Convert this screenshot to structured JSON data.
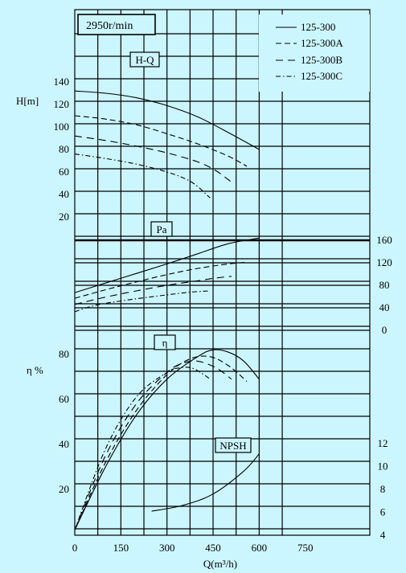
{
  "chart_data": {
    "type": "line",
    "speed_label": "2950r/min",
    "xlabel": "Q(m³/h)",
    "x_ticks": [
      0,
      150,
      300,
      450,
      600,
      750
    ],
    "x_range": [
      0,
      960
    ],
    "legend": [
      {
        "name": "125-300",
        "dash": "solid"
      },
      {
        "name": "125-300A",
        "dash": "dash"
      },
      {
        "name": "125-300B",
        "dash": "dash-wide"
      },
      {
        "name": "125-300C",
        "dash": "dashdot"
      }
    ],
    "panels": {
      "hq": {
        "label": "H-Q",
        "ylabel": "H[m]",
        "y_ticks": [
          20,
          40,
          60,
          80,
          100,
          120,
          140
        ],
        "series": [
          {
            "name": "125-300",
            "x": [
              0,
              100,
              200,
              300,
              400,
              500,
              600
            ],
            "y": [
              132,
              130,
              126,
              119,
              109,
              95,
              80
            ]
          },
          {
            "name": "125-300A",
            "x": [
              0,
              100,
              200,
              300,
              400,
              500,
              560
            ],
            "y": [
              110,
              107,
              102,
              94,
              85,
              74,
              65
            ]
          },
          {
            "name": "125-300B",
            "x": [
              0,
              100,
              200,
              300,
              400,
              460,
              510
            ],
            "y": [
              92,
              88,
              83,
              77,
              69,
              61,
              51
            ]
          },
          {
            "name": "125-300C",
            "x": [
              0,
              100,
              200,
              300,
              380,
              440
            ],
            "y": [
              76,
              72,
              67,
              60,
              51,
              37
            ]
          }
        ]
      },
      "pa": {
        "label": "Pa",
        "y_ticks_right": [
          0,
          40,
          80,
          120,
          160
        ],
        "series": [
          {
            "name": "125-300",
            "x": [
              0,
              100,
              200,
              300,
              400,
              500,
              600
            ],
            "y": [
              67,
              84,
              101,
              118,
              136,
              154,
              164
            ]
          },
          {
            "name": "125-300A",
            "x": [
              0,
              100,
              200,
              300,
              400,
              500,
              560
            ],
            "y": [
              57,
              72,
              86,
              99,
              110,
              118,
              121
            ]
          },
          {
            "name": "125-300B",
            "x": [
              0,
              100,
              200,
              300,
              400,
              460,
              510
            ],
            "y": [
              46,
              59,
              70,
              80,
              88,
              93,
              96
            ]
          },
          {
            "name": "125-300C",
            "x": [
              0,
              50,
              100,
              200,
              300,
              380,
              440
            ],
            "y": [
              33,
              42,
              48,
              56,
              63,
              68,
              70
            ]
          }
        ]
      },
      "eta": {
        "label": "η",
        "ylabel": "η %",
        "y_ticks": [
          20,
          40,
          60,
          80
        ],
        "series": [
          {
            "name": "125-300",
            "x": [
              0,
              100,
              200,
              300,
              400,
              450,
              500,
              550,
              600
            ],
            "y": [
              2,
              30,
              53,
              69,
              79,
              82,
              81,
              77,
              69
            ]
          },
          {
            "name": "125-300A",
            "x": [
              0,
              100,
              200,
              300,
              375,
              440,
              500,
              560
            ],
            "y": [
              2,
              32,
              55,
              71,
              78,
              79,
              75,
              68
            ]
          },
          {
            "name": "125-300B",
            "x": [
              0,
              100,
              200,
              300,
              350,
              400,
              460,
              510
            ],
            "y": [
              2,
              35,
              58,
              72,
              76,
              77,
              74,
              69
            ]
          },
          {
            "name": "125-300C",
            "x": [
              0,
              100,
              200,
              300,
              340,
              380,
              420,
              440
            ],
            "y": [
              2,
              38,
              61,
              72,
              74,
              74,
              71,
              69
            ]
          }
        ]
      },
      "npsh": {
        "label": "NPSH",
        "y_ticks_right": [
          4,
          6,
          8,
          10,
          12
        ],
        "series": [
          {
            "name": "125-300",
            "x": [
              250,
              350,
              450,
              550,
              600
            ],
            "y": [
              6.1,
              6.6,
              7.6,
              9.6,
              11.1
            ]
          }
        ]
      }
    }
  }
}
